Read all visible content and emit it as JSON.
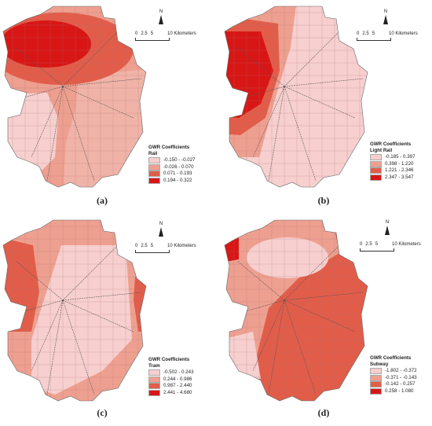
{
  "panels": [
    {
      "id": "a",
      "caption": "(a)",
      "north": "N",
      "scale_ticks": [
        "0",
        "2.5",
        "5"
      ],
      "scale_unit": "10 Kilometers",
      "legend_title": "GWR Coefficients",
      "legend_subtitle": "Rail",
      "classes": [
        {
          "label": "-0.150 - -0.027",
          "color": "#f7cfcf"
        },
        {
          "label": "-0.026 - 0.070",
          "color": "#eea090"
        },
        {
          "label": "0.071 - 0.193",
          "color": "#e15d4a"
        },
        {
          "label": "0.194 - 0.322",
          "color": "#d81616"
        }
      ]
    },
    {
      "id": "b",
      "caption": "(b)",
      "north": "N",
      "scale_ticks": [
        "0",
        "2.5",
        "5"
      ],
      "scale_unit": "10 Kilometers",
      "legend_title": "GWR Coefficients",
      "legend_subtitle": "Light Rail",
      "classes": [
        {
          "label": "-0.185 - 0.397",
          "color": "#f7cfcf"
        },
        {
          "label": "0.398 - 1.220",
          "color": "#eea090"
        },
        {
          "label": "1.221 - 2.346",
          "color": "#e15d4a"
        },
        {
          "label": "2.347 - 3.547",
          "color": "#d81616"
        }
      ]
    },
    {
      "id": "c",
      "caption": "(c)",
      "north": "N",
      "scale_ticks": [
        "0",
        "2.5",
        "5"
      ],
      "scale_unit": "10 Kilometers",
      "legend_title": "GWR Coefficients",
      "legend_subtitle": "Tram",
      "classes": [
        {
          "label": "-0.502 - 0.243",
          "color": "#f7cfcf"
        },
        {
          "label": "0.244 - 0.986",
          "color": "#eea090"
        },
        {
          "label": "0.987 - 2.440",
          "color": "#e15d4a"
        },
        {
          "label": "2.441 - 4.680",
          "color": "#d81616"
        }
      ]
    },
    {
      "id": "d",
      "caption": "(d)",
      "north": "N",
      "scale_ticks": [
        "0",
        "2.5",
        "5"
      ],
      "scale_unit": "10 Kilometers",
      "legend_title": "GWR Coefficients",
      "legend_subtitle": "Subway",
      "classes": [
        {
          "label": "-1.802 - -0.372",
          "color": "#f7cfcf"
        },
        {
          "label": "-0.371 - -0.143",
          "color": "#eea090"
        },
        {
          "label": "-0.142 - 0.257",
          "color": "#e15d4a"
        },
        {
          "label": "0.258 - 1.080",
          "color": "#d81616"
        }
      ]
    }
  ]
}
